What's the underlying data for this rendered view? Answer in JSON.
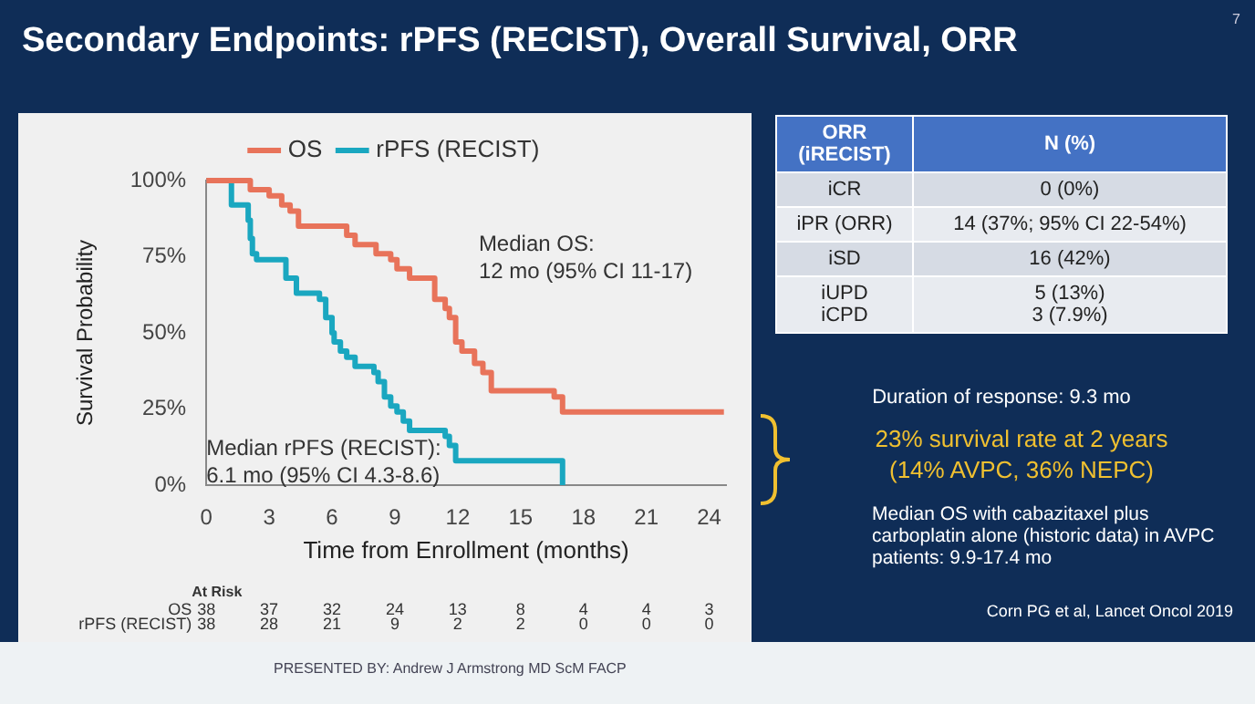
{
  "chart_data": {
    "type": "step",
    "title": "Secondary Endpoints: rPFS (RECIST), Overall Survival, ORR",
    "xlabel": "Time from Enrollment (months)",
    "ylabel": "Survival Probability",
    "series": [
      {
        "name": "OS",
        "color": "#e8735a",
        "x": [
          0,
          2.1,
          3.0,
          3.6,
          4.0,
          4.4,
          6.7,
          7.1,
          8.1,
          8.8,
          9.1,
          9.7,
          10.9,
          11.4,
          11.6,
          11.9,
          12.2,
          12.8,
          13.2,
          13.6,
          16.6,
          17.0,
          24.7
        ],
        "values": [
          100,
          97,
          95,
          92,
          90,
          85,
          82,
          79,
          76,
          74,
          71,
          68,
          61,
          58,
          55,
          47,
          44,
          40,
          37,
          31,
          29,
          24,
          24
        ]
      },
      {
        "name": "rPFS (RECIST)",
        "color": "#1aa7c0",
        "x": [
          0,
          1.2,
          2.0,
          2.1,
          2.2,
          2.4,
          3.8,
          4.3,
          5.4,
          5.7,
          6.0,
          6.1,
          6.4,
          6.7,
          7.1,
          8.0,
          8.2,
          8.5,
          8.8,
          9.1,
          9.4,
          9.7,
          11.4,
          11.6,
          11.9,
          17.0
        ],
        "values": [
          100,
          92,
          87,
          81,
          76,
          74,
          68,
          63,
          61,
          55,
          50,
          47,
          44,
          42,
          39,
          37,
          34,
          29,
          26,
          24,
          21,
          18,
          16,
          13,
          8,
          0
        ]
      }
    ],
    "xlim": [
      0,
      24.8
    ],
    "xticks": [
      0,
      3,
      6,
      9,
      12,
      15,
      18,
      21,
      24
    ],
    "ylim": [
      0,
      100
    ],
    "yticks": [
      {
        "value": 0,
        "label": "0%"
      },
      {
        "value": 25,
        "label": "25%"
      },
      {
        "value": 50,
        "label": "50%"
      },
      {
        "value": 75,
        "label": "75%"
      },
      {
        "value": 100,
        "label": "100%"
      }
    ],
    "grid": false,
    "legend": "top",
    "marker": "none",
    "line_style": "solid",
    "annotations": [
      "Median OS:",
      "12 mo (95% CI 11-17)",
      "Median rPFS (RECIST):",
      "6.1 mo (95% CI 4.3-8.6)",
      "At Risk",
      "OS",
      "rPFS (RECIST)",
      "38",
      "37",
      "32",
      "24",
      "13",
      "8",
      "4",
      "4",
      "3",
      "38",
      "28",
      "21",
      "9",
      "2",
      "2",
      "0",
      "0",
      "0",
      "ORR (iRECIST)",
      "N (%)",
      "iCR",
      "0 (0%)",
      "iPR (ORR)",
      "14 (37%; 95% CI 22-54%)",
      "iSD",
      "16 (42%)",
      "iUPD\niCPD",
      "5 (13%)\n3 (7.9%)",
      "Duration of response: 9.3 mo",
      "23% survival rate at 2 years",
      "(14% AVPC, 36% NEPC)",
      "Median OS with cabazitaxel plus carboplatin alone (historic data) in AVPC patients: 9.9-17.4 mo",
      "Corn PG et al, Lancet Oncol 2019",
      "PRESENTED BY: Andrew J Armstrong MD ScM FACP",
      "7"
    ]
  }
}
